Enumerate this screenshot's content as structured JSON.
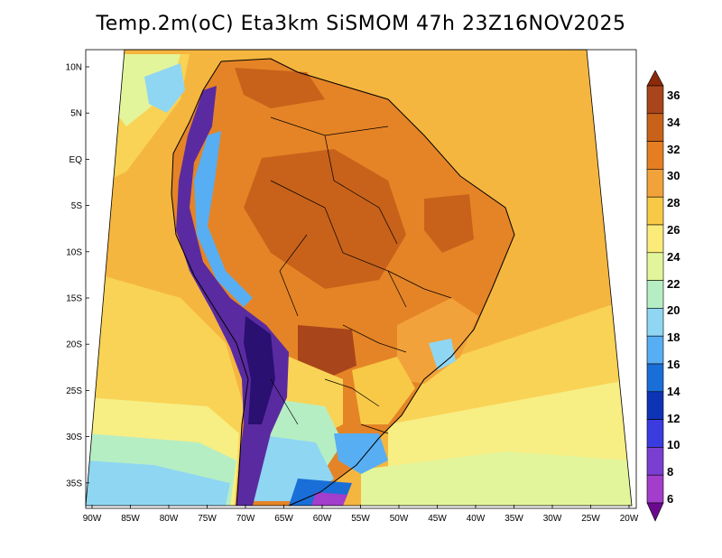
{
  "title": "Temp.2m(oC) Eta3km SiSMOM 47h 23Z16NOV2025",
  "lat_labels": [
    "10N",
    "5N",
    "EQ",
    "5S",
    "10S",
    "15S",
    "20S",
    "25S",
    "30S",
    "35S"
  ],
  "lon_labels": [
    "90W",
    "85W",
    "80W",
    "75W",
    "70W",
    "65W",
    "60W",
    "55W",
    "50W",
    "45W",
    "40W",
    "35W",
    "30W",
    "25W",
    "20W"
  ],
  "colorbar": {
    "levels": [
      "36",
      "34",
      "32",
      "30",
      "28",
      "26",
      "24",
      "22",
      "20",
      "18",
      "16",
      "14",
      "12",
      "10",
      "8",
      "6"
    ],
    "colors": [
      "#8b2a0a",
      "#a9451a",
      "#c8621a",
      "#e57e23",
      "#f2a23a",
      "#f8c947",
      "#fbeb7a",
      "#e3f59a",
      "#b6eec3",
      "#8fd6f2",
      "#57aef3",
      "#1a6ed8",
      "#0e33b5",
      "#3b3ce0",
      "#7a3fd0",
      "#a23ecb",
      "#6a0b8e"
    ]
  },
  "fill_colors": {
    "ocean_warm": "#f5b63f",
    "ocean_mid": "#f9d355",
    "ocean_cool": "#f7ee84",
    "land_hot": "#e58426",
    "land_veryhot": "#c8621a",
    "south_cool": "#9fe0cf",
    "south_cold": "#66bdf0",
    "andes": "#5a2ba0",
    "andes_cold": "#2a1070"
  }
}
